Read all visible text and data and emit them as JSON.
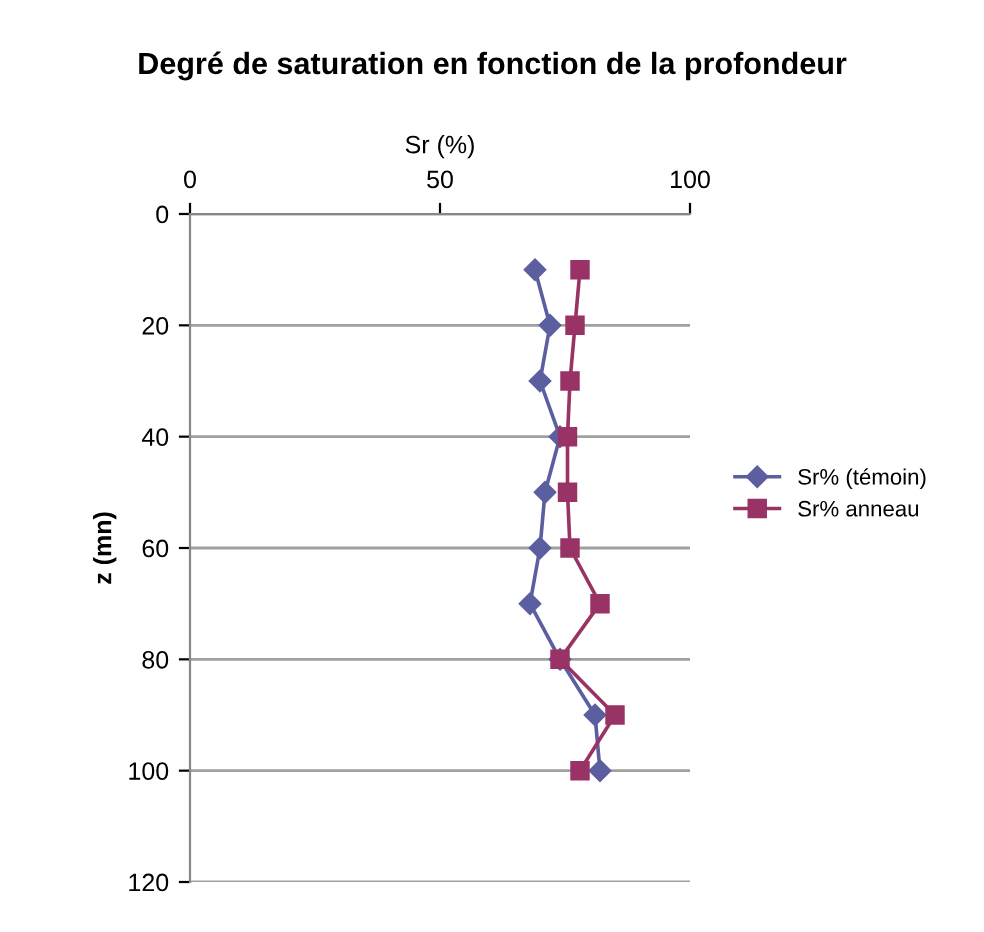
{
  "chart_data": {
    "type": "line",
    "title": "Degré de saturation en fonction de la profondeur",
    "xlabel": "Sr (%)",
    "ylabel": "z (mn)",
    "xlim": [
      0,
      100
    ],
    "xticks": [
      0,
      50,
      100
    ],
    "ylim": [
      120,
      0
    ],
    "yticks": [
      0,
      20,
      40,
      60,
      80,
      100,
      120
    ],
    "grid": "y",
    "legend": "right",
    "series": [
      {
        "name": "Sr% (témoin)",
        "color": "#5b5f9f",
        "marker": "diamond",
        "x": [
          69,
          72,
          70,
          74,
          71,
          70,
          68,
          74,
          81,
          82
        ],
        "values": [
          10,
          20,
          30,
          40,
          50,
          60,
          70,
          80,
          90,
          100
        ]
      },
      {
        "name": "Sr% anneau",
        "color": "#993366",
        "marker": "square",
        "x": [
          78,
          77,
          76,
          75.5,
          75.5,
          76,
          82,
          74,
          85,
          78
        ],
        "values": [
          10,
          20,
          30,
          40,
          50,
          60,
          70,
          80,
          90,
          100
        ]
      }
    ]
  }
}
